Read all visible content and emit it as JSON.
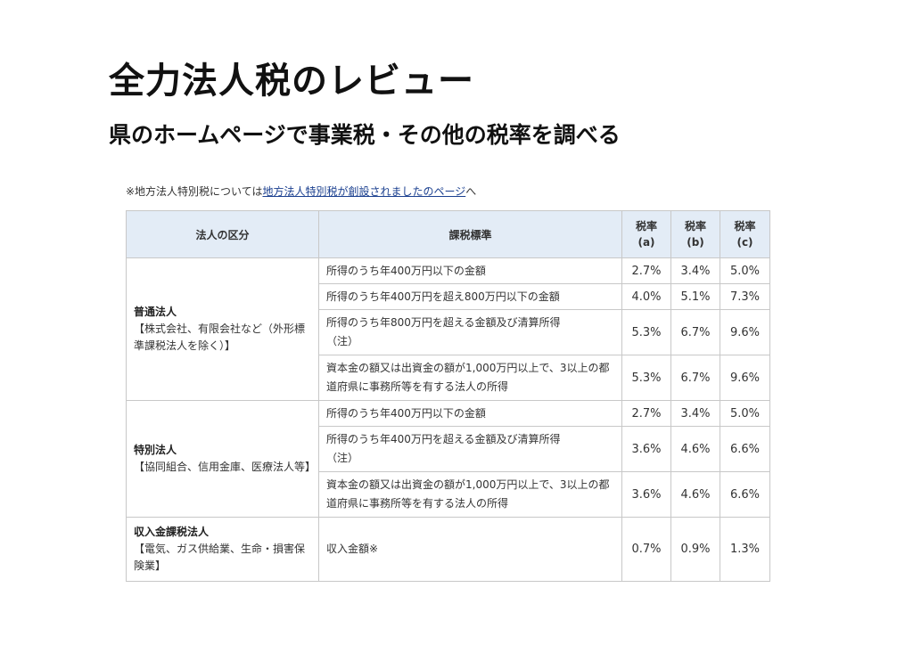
{
  "title": "全力法人税のレビュー",
  "subtitle": "県のホームページで事業税・その他の税率を調べる",
  "note": {
    "prefix": "※地方法人特別税については",
    "link": "地方法人特別税が創設されましたのページ",
    "suffix": "へ"
  },
  "table": {
    "headers": {
      "category": "法人の区分",
      "base": "課税標準",
      "rate_a": "税率\n(a)",
      "rate_b": "税率\n(b)",
      "rate_c": "税率\n(c)"
    },
    "groups": [
      {
        "name": "普通法人",
        "desc": "【株式会社、有限会社など（外形標準課税法人を除く）】",
        "rows": [
          {
            "base": "所得のうち年400万円以下の金額",
            "a": "2.7%",
            "b": "3.4%",
            "c": "5.0%"
          },
          {
            "base": "所得のうち年400万円を超え800万円以下の金額",
            "a": "4.0%",
            "b": "5.1%",
            "c": "7.3%"
          },
          {
            "base": "所得のうち年800万円を超える金額及び清算所得\n（注）",
            "a": "5.3%",
            "b": "6.7%",
            "c": "9.6%"
          },
          {
            "base": "資本金の額又は出資金の額が1,000万円以上で、3以上の都道府県に事務所等を有する法人の所得",
            "a": "5.3%",
            "b": "6.7%",
            "c": "9.6%"
          }
        ]
      },
      {
        "name": "特別法人",
        "desc": "【協同組合、信用金庫、医療法人等】",
        "rows": [
          {
            "base": "所得のうち年400万円以下の金額",
            "a": "2.7%",
            "b": "3.4%",
            "c": "5.0%"
          },
          {
            "base": "所得のうち年400万円を超える金額及び清算所得\n（注）",
            "a": "3.6%",
            "b": "4.6%",
            "c": "6.6%"
          },
          {
            "base": "資本金の額又は出資金の額が1,000万円以上で、3以上の都道府県に事務所等を有する法人の所得",
            "a": "3.6%",
            "b": "4.6%",
            "c": "6.6%"
          }
        ]
      },
      {
        "name": "収入金課税法人",
        "desc": "【電気、ガス供給業、生命・損害保険業】",
        "rows": [
          {
            "base": "収入金額※",
            "a": "0.7%",
            "b": "0.9%",
            "c": "1.3%"
          }
        ]
      }
    ]
  }
}
